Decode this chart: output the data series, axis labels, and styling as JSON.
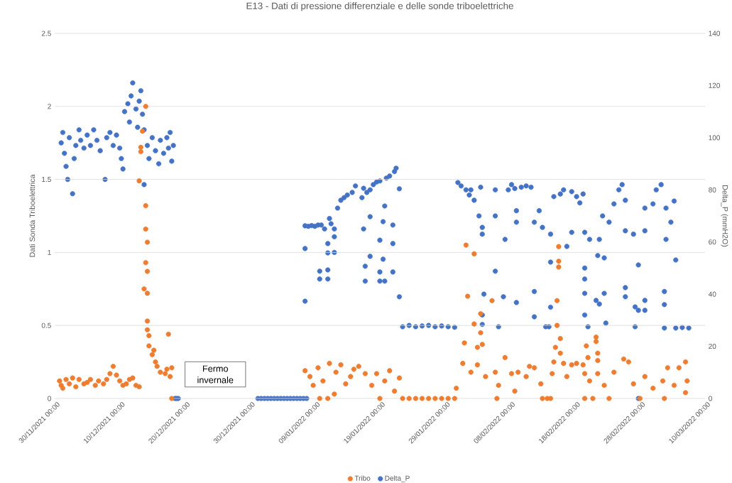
{
  "chart_data": {
    "type": "scatter",
    "title": "E13 - Dati di pressione differenziale e delle sonde triboelettriche",
    "ylabel": "Dati Sonda Triboelettrica",
    "y2label": "Delta_P (mmH2O)",
    "annotations": [
      "Fermo invernale"
    ],
    "xlim": [
      "2021-11-30",
      "2022-03-10"
    ],
    "xticks": [
      {
        "value": "2021-11-30",
        "label": "30/11/2021 00:00"
      },
      {
        "value": "2021-12-10",
        "label": "10/12/2021 00:00"
      },
      {
        "value": "2021-12-20",
        "label": "20/12/2021 00:00"
      },
      {
        "value": "2021-12-30",
        "label": "30/12/2021 00:00"
      },
      {
        "value": "2022-01-09",
        "label": "09/01/2022 00:00"
      },
      {
        "value": "2022-01-19",
        "label": "19/01/2022 00:00"
      },
      {
        "value": "2022-01-29",
        "label": "29/01/2022 00:00"
      },
      {
        "value": "2022-02-08",
        "label": "08/02/2022 00:00"
      },
      {
        "value": "2022-02-18",
        "label": "18/02/2022 00:00"
      },
      {
        "value": "2022-02-28",
        "label": "28/02/2022 00:00"
      },
      {
        "value": "2022-03-10",
        "label": "10/03/2022 00:00"
      }
    ],
    "ylim": [
      0,
      2.5
    ],
    "yticks": [
      0,
      0.5,
      1,
      1.5,
      2,
      2.5
    ],
    "y2lim": [
      0,
      140
    ],
    "y2ticks": [
      0,
      20,
      40,
      60,
      80,
      100,
      120,
      140
    ],
    "grid": "y",
    "legend": "bottom",
    "marker": "circle",
    "series": [
      {
        "name": "Tribo",
        "color": "#ed7d31",
        "x": [
          "2021-11-30T18:00",
          "2021-12-01T00:00",
          "2021-12-01T06:00",
          "2021-12-01T18:00",
          "2021-12-02T06:00",
          "2021-12-02T18:00",
          "2021-12-03T06:00",
          "2021-12-03T18:00",
          "2021-12-04T12:00",
          "2021-12-05T00:00",
          "2021-12-05T12:00",
          "2021-12-06T06:00",
          "2021-12-06T18:00",
          "2021-12-07T12:00",
          "2021-12-08T00:00",
          "2021-12-08T12:00",
          "2021-12-09T00:00",
          "2021-12-09T12:00",
          "2021-12-10T00:00",
          "2021-12-10T12:00",
          "2021-12-11T00:00",
          "2021-12-11T12:00",
          "2021-12-12T00:00",
          "2021-12-12T12:00",
          "2021-12-13T00:00",
          "2021-12-13T00:00",
          "2021-12-13T06:00",
          "2021-12-13T06:00",
          "2021-12-13T12:00",
          "2021-12-13T18:00",
          "2021-12-14T00:00",
          "2021-12-14T00:00",
          "2021-12-14T00:00",
          "2021-12-14T00:00",
          "2021-12-14T06:00",
          "2021-12-14T06:00",
          "2021-12-14T06:00",
          "2021-12-14T06:00",
          "2021-12-14T06:00",
          "2021-12-14T12:00",
          "2021-12-14T12:00",
          "2021-12-15T00:00",
          "2021-12-15T06:00",
          "2021-12-15T12:00",
          "2021-12-15T18:00",
          "2021-12-16T06:00",
          "2021-12-17T00:00",
          "2021-12-17T06:00",
          "2021-12-17T12:00",
          "2021-12-17T18:00",
          "2021-12-18T00:00",
          "2021-12-18T00:00",
          "2022-01-07T12:00",
          "2022-01-08T06:00",
          "2022-01-08T18:00",
          "2022-01-09T12:00",
          "2022-01-09T18:00",
          "2022-01-10T06:00",
          "2022-01-11T00:00",
          "2022-01-11T06:00",
          "2022-01-12T00:00",
          "2022-01-12T06:00",
          "2022-01-13T00:00",
          "2022-01-13T18:00",
          "2022-01-14T12:00",
          "2022-01-15T00:00",
          "2022-01-15T18:00",
          "2022-01-16T18:00",
          "2022-01-17T18:00",
          "2022-01-18T12:00",
          "2022-01-19T00:00",
          "2022-01-19T18:00",
          "2022-01-20T12:00",
          "2022-01-21T06:00",
          "2022-01-22T00:00",
          "2022-01-22T12:00",
          "2022-01-23T12:00",
          "2022-01-24T12:00",
          "2022-01-25T12:00",
          "2022-01-26T12:00",
          "2022-01-27T12:00",
          "2022-01-28T12:00",
          "2022-01-29T12:00",
          "2022-01-30T12:00",
          "2022-01-30T18:00",
          "2022-01-31T18:00",
          "2022-02-01T00:00",
          "2022-02-01T06:00",
          "2022-02-01T12:00",
          "2022-02-02T12:00",
          "2022-02-02T12:00",
          "2022-02-03T00:00",
          "2022-02-03T12:00",
          "2022-02-03T12:00",
          "2022-02-03T18:00",
          "2022-02-05T06:00",
          "2022-02-02T00:00",
          "2022-02-03T00:00",
          "2022-02-04T06:00",
          "2022-02-05T18:00",
          "2022-02-06T00:00",
          "2022-02-06T06:00",
          "2022-02-07T06:00",
          "2022-02-08T06:00",
          "2022-02-08T18:00",
          "2022-02-09T06:00",
          "2022-02-10T12:00",
          "2022-02-11T00:00",
          "2022-02-11T18:00",
          "2022-02-12T18:00",
          "2022-02-13T00:00",
          "2022-02-13T18:00",
          "2022-02-14T06:00",
          "2022-02-14T12:00",
          "2022-02-14T18:00",
          "2022-02-15T00:00",
          "2022-02-15T06:00",
          "2022-02-15T06:00",
          "2022-02-15T12:00",
          "2022-02-15T12:00",
          "2022-02-15T12:00",
          "2022-02-15T18:00",
          "2022-02-15T18:00",
          "2022-02-16T06:00",
          "2022-02-16T18:00",
          "2022-02-17T12:00",
          "2022-02-18T06:00",
          "2022-02-19T06:00",
          "2022-02-19T12:00",
          "2022-02-19T12:00",
          "2022-02-19T18:00",
          "2022-02-20T00:00",
          "2022-02-20T06:00",
          "2022-02-20T18:00",
          "2022-02-21T06:00",
          "2022-02-21T06:00",
          "2022-02-21T12:00",
          "2022-02-21T12:00",
          "2022-02-21T12:00",
          "2022-02-22T12:00",
          "2022-02-23T06:00",
          "2022-02-24T00:00",
          "2022-02-25T12:00",
          "2022-02-26T06:00",
          "2022-02-27T00:00",
          "2022-02-28T00:00",
          "2022-02-28T18:00",
          "2022-03-02T00:00",
          "2022-03-03T12:00",
          "2022-03-03T18:00",
          "2022-03-04T06:00",
          "2022-03-05T06:00",
          "2022-03-06T00:00",
          "2022-03-07T00:00",
          "2022-03-07T06:00",
          "2022-03-07T00:00"
        ],
        "values": [
          0.12,
          0.09,
          0.07,
          0.13,
          0.1,
          0.14,
          0.08,
          0.13,
          0.1,
          0.11,
          0.13,
          0.09,
          0.12,
          0.1,
          0.13,
          0.17,
          0.22,
          0.16,
          0.12,
          0.09,
          0.1,
          0.13,
          0.14,
          0.09,
          0.08,
          1.49,
          1.72,
          1.69,
          1.83,
          0.75,
          2.0,
          1.32,
          1.16,
          0.93,
          1.07,
          0.87,
          0.72,
          0.53,
          0.47,
          0.43,
          0.36,
          0.3,
          0.33,
          0.25,
          0.22,
          0.18,
          0.17,
          0.2,
          0.44,
          0.15,
          0.21,
          0,
          0.19,
          0.15,
          0.09,
          0.21,
          0,
          0.12,
          0,
          0.24,
          0.03,
          0.18,
          0.23,
          0.1,
          0.15,
          0.2,
          0.22,
          0.17,
          0.09,
          0.17,
          0,
          0.12,
          0.19,
          0.05,
          0.14,
          0,
          0,
          0,
          0,
          0,
          0,
          0,
          0,
          0,
          0.07,
          0.24,
          0.38,
          1.05,
          0.7,
          0.99,
          0.51,
          0.35,
          0.58,
          0.45,
          0.37,
          0.67,
          0.18,
          0.23,
          0.15,
          0.18,
          0,
          0.09,
          0.28,
          0.17,
          0.05,
          0.18,
          0.15,
          0.22,
          0.21,
          0.1,
          0,
          0,
          0,
          0.17,
          0.25,
          0.35,
          0.67,
          0.5,
          0.94,
          0.9,
          1.04,
          0.41,
          0.31,
          0.24,
          0.15,
          0.23,
          0.24,
          0.23,
          0.17,
          0,
          0.36,
          0.28,
          0.12,
          0,
          0.42,
          0.39,
          0.31,
          0.26,
          0.17,
          0.09,
          0,
          0.18,
          0.27,
          0.25,
          0.1,
          0,
          0.15,
          0.07,
          0.12,
          0,
          0.21,
          0.09,
          0.21,
          0.25,
          0.12,
          0.04
        ]
      },
      {
        "name": "Delta_P",
        "color": "#4472c4",
        "axis": "y2",
        "x": [
          "2021-12-01T00:00",
          "2021-12-01T06:00",
          "2021-12-01T12:00",
          "2021-12-01T18:00",
          "2021-12-02T00:00",
          "2021-12-02T06:00",
          "2021-12-02T18:00",
          "2021-12-03T00:00",
          "2021-12-03T06:00",
          "2021-12-03T18:00",
          "2021-12-04T00:00",
          "2021-12-04T12:00",
          "2021-12-05T00:00",
          "2021-12-05T12:00",
          "2021-12-06T00:00",
          "2021-12-06T12:00",
          "2021-12-07T00:00",
          "2021-12-07T18:00",
          "2021-12-08T00:00",
          "2021-12-08T12:00",
          "2021-12-09T00:00",
          "2021-12-09T12:00",
          "2021-12-10T00:00",
          "2021-12-10T06:00",
          "2021-12-10T12:00",
          "2021-12-10T18:00",
          "2021-12-11T06:00",
          "2021-12-11T12:00",
          "2021-12-11T18:00",
          "2021-12-12T00:00",
          "2021-12-12T12:00",
          "2021-12-12T18:00",
          "2021-12-13T00:00",
          "2021-12-13T06:00",
          "2021-12-13T12:00",
          "2021-12-13T18:00",
          "2021-12-13T18:00",
          "2021-12-14T06:00",
          "2021-12-14T12:00",
          "2021-12-15T00:00",
          "2021-12-15T12:00",
          "2021-12-16T00:00",
          "2021-12-16T06:00",
          "2021-12-16T18:00",
          "2021-12-17T06:00",
          "2021-12-17T12:00",
          "2021-12-17T18:00",
          "2021-12-18T00:00",
          "2021-12-18T06:00",
          "2021-12-18T12:00",
          "2021-12-18T18:00",
          "2021-12-19T00:00",
          "2021-12-31T06:00",
          "2021-12-31T18:00",
          "2022-01-01T06:00",
          "2022-01-01T18:00",
          "2022-01-02T06:00",
          "2022-01-02T18:00",
          "2022-01-03T06:00",
          "2022-01-03T18:00",
          "2022-01-04T06:00",
          "2022-01-04T18:00",
          "2022-01-05T06:00",
          "2022-01-05T18:00",
          "2022-01-06T06:00",
          "2022-01-06T18:00",
          "2022-01-07T06:00",
          "2022-01-07T18:00",
          "2022-01-07T12:00",
          "2022-01-07T12:00",
          "2022-01-07T12:00",
          "2022-01-08T00:00",
          "2022-01-08T12:00",
          "2022-01-09T00:00",
          "2022-01-09T12:00",
          "2022-01-09T18:00",
          "2022-01-09T18:00",
          "2022-01-10T00:00",
          "2022-01-10T12:00",
          "2022-01-11T00:00",
          "2022-01-11T00:00",
          "2022-01-11T00:00",
          "2022-01-11T00:00",
          "2022-01-11T06:00",
          "2022-01-11T12:00",
          "2022-01-12T00:00",
          "2022-01-12T00:00",
          "2022-01-12T00:00",
          "2022-01-12T12:00",
          "2022-01-13T00:00",
          "2022-01-13T12:00",
          "2022-01-14T00:00",
          "2022-01-14T18:00",
          "2022-01-15T06:00",
          "2022-01-16T06:00",
          "2022-01-16T12:00",
          "2022-01-16T12:00",
          "2022-01-16T18:00",
          "2022-01-16T18:00",
          "2022-01-17T00:00",
          "2022-01-17T12:00",
          "2022-01-17T12:00",
          "2022-01-17T12:00",
          "2022-01-18T00:00",
          "2022-01-18T12:00",
          "2022-01-19T00:00",
          "2022-01-19T00:00",
          "2022-01-19T00:00",
          "2022-01-19T00:00",
          "2022-01-19T12:00",
          "2022-01-19T12:00",
          "2022-01-19T18:00",
          "2022-01-19T18:00",
          "2022-01-20T00:00",
          "2022-01-20T12:00",
          "2022-01-21T00:00",
          "2022-01-21T00:00",
          "2022-01-21T00:00",
          "2022-01-21T06:00",
          "2022-01-21T12:00",
          "2022-01-22T00:00",
          "2022-01-22T00:00",
          "2022-01-22T12:00",
          "2022-01-23T12:00",
          "2022-01-24T12:00",
          "2022-01-25T12:00",
          "2022-01-26T12:00",
          "2022-01-27T12:00",
          "2022-01-28T12:00",
          "2022-01-29T12:00",
          "2022-01-30T12:00",
          "2022-01-31T00:00",
          "2022-01-31T12:00",
          "2022-02-01T06:00",
          "2022-02-01T18:00",
          "2022-02-02T00:00",
          "2022-02-02T12:00",
          "2022-02-03T06:00",
          "2022-02-03T12:00",
          "2022-02-03T18:00",
          "2022-02-03T18:00",
          "2022-02-03T18:00",
          "2022-02-03T18:00",
          "2022-02-04T00:00",
          "2022-02-05T18:00",
          "2022-02-05T18:00",
          "2022-02-05T18:00",
          "2022-02-06T06:00",
          "2022-02-07T00:00",
          "2022-02-07T06:00",
          "2022-02-07T18:00",
          "2022-02-08T06:00",
          "2022-02-08T18:00",
          "2022-02-09T00:00",
          "2022-02-09T00:00",
          "2022-02-09T00:00",
          "2022-02-09T18:00",
          "2022-02-10T12:00",
          "2022-02-11T06:00",
          "2022-02-11T18:00",
          "2022-02-11T18:00",
          "2022-02-11T18:00",
          "2022-02-12T12:00",
          "2022-02-13T00:00",
          "2022-02-13T12:00",
          "2022-02-14T00:00",
          "2022-02-14T06:00",
          "2022-02-14T06:00",
          "2022-02-14T06:00",
          "2022-02-14T18:00",
          "2022-02-15T18:00",
          "2022-02-16T06:00",
          "2022-02-16T18:00",
          "2022-02-17T12:00",
          "2022-02-17T12:00",
          "2022-02-18T06:00",
          "2022-02-18T18:00",
          "2022-02-19T06:00",
          "2022-02-19T12:00",
          "2022-02-19T12:00",
          "2022-02-19T12:00",
          "2022-02-19T12:00",
          "2022-02-19T12:00",
          "2022-02-20T00:00",
          "2022-02-20T06:00",
          "2022-02-21T06:00",
          "2022-02-21T12:00",
          "2022-02-21T18:00",
          "2022-02-21T18:00",
          "2022-02-22T06:00",
          "2022-02-22T12:00",
          "2022-02-22T12:00",
          "2022-02-22T18:00",
          "2022-02-23T06:00",
          "2022-02-24T00:00",
          "2022-02-24T18:00",
          "2022-02-25T06:00",
          "2022-02-25T18:00",
          "2022-02-25T18:00",
          "2022-02-25T18:00",
          "2022-02-25T18:00",
          "2022-02-27T00:00",
          "2022-02-27T06:00",
          "2022-02-27T06:00",
          "2022-02-27T18:00",
          "2022-02-27T18:00",
          "2022-02-27T18:00",
          "2022-02-28T18:00",
          "2022-02-28T18:00",
          "2022-02-28T18:00",
          "2022-02-28T18:00",
          "2022-03-02T00:00",
          "2022-03-02T12:00",
          "2022-03-03T06:00",
          "2022-03-03T18:00",
          "2022-03-03T18:00",
          "2022-03-03T18:00",
          "2022-03-04T00:00",
          "2022-03-04T00:00",
          "2022-03-04T18:00",
          "2022-03-05T06:00",
          "2022-03-05T12:00",
          "2022-03-05T12:00",
          "2022-03-06T12:00",
          "2022-03-07T12:00"
        ],
        "values": [
          98,
          102,
          94,
          89,
          84,
          100,
          78.5,
          92,
          97,
          103,
          99,
          96,
          101,
          97,
          103,
          99,
          95,
          84,
          100,
          102,
          97,
          101,
          96,
          92,
          88,
          110,
          113,
          106,
          116,
          121,
          111,
          104,
          114,
          118,
          109,
          103,
          82,
          97,
          92,
          100,
          95,
          90,
          99,
          94,
          100,
          96,
          102,
          91,
          97,
          0,
          0,
          0,
          0,
          0,
          0,
          0,
          0,
          0,
          0,
          0,
          0,
          0,
          0,
          0,
          0,
          0,
          0,
          0,
          66.2,
          57.5,
          37.3,
          66,
          66.3,
          66,
          66.5,
          48.8,
          45.8,
          66.5,
          65,
          49.3,
          45.8,
          59.4,
          55.8,
          69,
          67,
          56,
          62,
          65,
          73,
          76,
          77,
          78,
          79,
          81.5,
          77,
          80.6,
          65,
          50.7,
          45,
          79,
          69.7,
          54.5,
          80,
          82,
          83,
          83.4,
          60.7,
          48.5,
          45,
          67.8,
          53.4,
          73.8,
          45,
          84.5,
          85.3,
          66.5,
          59.4,
          48.5,
          87,
          88.3,
          80.4,
          39,
          27.5,
          28,
          27.5,
          27.8,
          28,
          27.5,
          27.8,
          27.5,
          27.3,
          82.8,
          81.5,
          80,
          78,
          80,
          76,
          70,
          81,
          65.6,
          63,
          32,
          28.4,
          40,
          80,
          70,
          48.8,
          27.5,
          39,
          61,
          80,
          82,
          80.5,
          67.6,
          72,
          36.8,
          81,
          81.5,
          81,
          67.6,
          41,
          31.3,
          72,
          65.6,
          27.5,
          27.5,
          63,
          35,
          52.3,
          77.4,
          78.4,
          80,
          58.3,
          79.3,
          63.7,
          77.4,
          75,
          78.4,
          63.7,
          45.8,
          50,
          40.3,
          32,
          27.5,
          61,
          37.6,
          54.8,
          61,
          36.2,
          70,
          53.9,
          40.3,
          28.9,
          67.6,
          74.6,
          80,
          82,
          76,
          42.5,
          39,
          64.3,
          63,
          27.5,
          35.1,
          51.2,
          33.8,
          0,
          64.3,
          73,
          37.6,
          33.8,
          74.6,
          80,
          82,
          41,
          36,
          27,
          61,
          73,
          67.6,
          75.7,
          53.1,
          27,
          27.2,
          27
        ]
      }
    ]
  }
}
